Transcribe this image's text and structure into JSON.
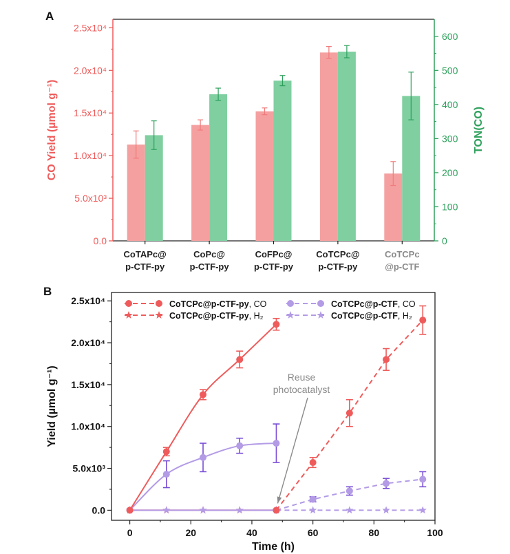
{
  "chart_data": [
    {
      "type": "bar",
      "panel_label": "A",
      "categories": [
        [
          "CoTAPc@",
          "p-CTF-py"
        ],
        [
          "CoPc@",
          "p-CTF-py"
        ],
        [
          "CoFPc@",
          "p-CTF-py"
        ],
        [
          "CoTCPc@",
          "p-CTF-py"
        ],
        [
          "CoTCPc",
          "@p-CTF"
        ]
      ],
      "category_colors": [
        "#222222",
        "#222222",
        "#222222",
        "#222222",
        "#8a8a8a"
      ],
      "ylabel": "CO Yield (µmol g⁻¹)",
      "ylim": [
        0,
        26000
      ],
      "yticks": [
        "0.0",
        "5.0x10³",
        "1.0x10⁴",
        "1.5x10⁴",
        "2.0x10⁴",
        "2.5x10⁴"
      ],
      "y2label": "TON(CO)",
      "y2lim": [
        0,
        650
      ],
      "y2ticks": [
        "0",
        "100",
        "200",
        "300",
        "400",
        "500",
        "600"
      ],
      "series": [
        {
          "axis": "left",
          "color": "#f07b7b",
          "fill": "#f5a0a0",
          "values": [
            11300,
            13600,
            15200,
            22100,
            7900
          ],
          "errors": [
            1600,
            600,
            400,
            700,
            1400
          ]
        },
        {
          "axis": "right",
          "color": "#2ea05c",
          "fill": "#7fcfa0",
          "values": [
            310,
            430,
            470,
            555,
            425
          ],
          "errors": [
            42,
            18,
            15,
            18,
            70
          ]
        }
      ],
      "colors": {
        "left_axis": "#ef5b5b",
        "right_axis": "#2ea05c"
      }
    },
    {
      "type": "line",
      "panel_label": "B",
      "xlabel": "Time (h)",
      "ylabel": "Yield (µmol g⁻¹)",
      "xlim": [
        -6,
        100
      ],
      "ylim": [
        -1200,
        26000
      ],
      "xticks": [
        "0",
        "20",
        "40",
        "60",
        "80",
        "100"
      ],
      "yticks": [
        "0.0",
        "5.0x10³",
        "1.0x10⁴",
        "1.5x10⁴",
        "2.0x10⁴",
        "2.5x10⁴"
      ],
      "legend": [
        {
          "name": "CoTCPc@p-CTF-py",
          "suffix": ", CO",
          "color": "#ef5b5b",
          "marker": "circle"
        },
        {
          "name": "CoTCPc@p-CTF-py",
          "suffix": ", H₂",
          "color": "#ef5b5b",
          "marker": "star"
        },
        {
          "name": "CoTCPc@p-CTF",
          "suffix": ", CO",
          "color": "#b39be6",
          "marker": "circle"
        },
        {
          "name": "CoTCPc@p-CTF",
          "suffix": ", H₂",
          "color": "#b39be6",
          "marker": "star"
        }
      ],
      "series": [
        {
          "name": "CoTCPc@p-CTF-py, CO (cycle 1)",
          "color": "#ef5b5b",
          "marker": "circle",
          "dashed": false,
          "x": [
            0,
            12,
            24,
            36,
            48
          ],
          "y": [
            0,
            7000,
            13800,
            18000,
            22200
          ],
          "errors": [
            0,
            500,
            600,
            1000,
            700
          ]
        },
        {
          "name": "CoTCPc@p-CTF-py, CO (cycle 2)",
          "color": "#ef5b5b",
          "marker": "circle",
          "dashed": true,
          "x": [
            48,
            60,
            72,
            84,
            96
          ],
          "y": [
            0,
            5700,
            11600,
            18000,
            22700
          ],
          "errors": [
            0,
            600,
            1600,
            1300,
            1700
          ]
        },
        {
          "name": "CoTCPc@p-CTF, CO (cycle 1)",
          "color": "#b39be6",
          "errbar": "#7a4fd6",
          "marker": "circle",
          "dashed": false,
          "x": [
            0,
            12,
            24,
            36,
            48
          ],
          "y": [
            0,
            4300,
            6300,
            7700,
            8000
          ],
          "errors": [
            0,
            1600,
            1700,
            900,
            2300
          ]
        },
        {
          "name": "CoTCPc@p-CTF, CO (cycle 2)",
          "color": "#b39be6",
          "errbar": "#7a4fd6",
          "marker": "circle",
          "dashed": true,
          "x": [
            48,
            60,
            72,
            84,
            96
          ],
          "y": [
            0,
            1300,
            2300,
            3200,
            3700
          ],
          "errors": [
            0,
            300,
            500,
            600,
            900
          ]
        },
        {
          "name": "CoTCPc@p-CTF-py, H2",
          "color": "#ef5b5b",
          "marker": "star",
          "dashed": false,
          "x": [
            0,
            12,
            24,
            36,
            48
          ],
          "y": [
            0,
            0,
            0,
            0,
            0
          ],
          "errors": [
            0,
            0,
            0,
            0,
            0
          ]
        },
        {
          "name": "CoTCPc@p-CTF, H2",
          "color": "#b39be6",
          "marker": "star",
          "dashed": false,
          "x": [
            0,
            12,
            24,
            36,
            48
          ],
          "y": [
            0,
            0,
            0,
            0,
            0
          ],
          "errors": [
            0,
            0,
            0,
            0,
            0
          ]
        },
        {
          "name": "H2 (cycle 2)",
          "color": "#b39be6",
          "marker": "star",
          "dashed": true,
          "x": [
            48,
            60,
            72,
            84,
            96
          ],
          "y": [
            0,
            0,
            0,
            0,
            0
          ],
          "errors": [
            0,
            0,
            0,
            0,
            0
          ]
        }
      ],
      "annotations": [
        {
          "lines": [
            "Reuse",
            "photocatalyst"
          ],
          "color": "#8a8a8a",
          "arrow_to": {
            "x": 48,
            "y": 0
          }
        }
      ]
    }
  ]
}
